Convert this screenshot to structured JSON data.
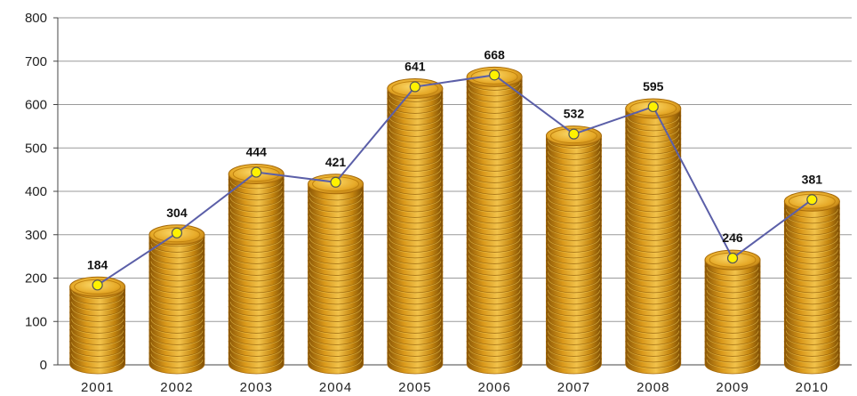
{
  "chart_data": {
    "type": "bar",
    "categories": [
      "2001",
      "2002",
      "2003",
      "2004",
      "2005",
      "2006",
      "2007",
      "2008",
      "2009",
      "2010"
    ],
    "values": [
      184,
      304,
      444,
      421,
      641,
      668,
      532,
      595,
      246,
      381
    ],
    "value_labels": [
      "184",
      "304",
      "444",
      "421",
      "641",
      "668",
      "532",
      "595",
      "246",
      "381"
    ],
    "overlay_line": {
      "values": [
        184,
        304,
        444,
        421,
        641,
        668,
        532,
        595,
        246,
        381
      ]
    },
    "ylim": [
      0,
      800
    ],
    "yticks": [
      "0",
      "100",
      "200",
      "300",
      "400",
      "500",
      "600",
      "700",
      "800"
    ],
    "grid": true,
    "legend": "none",
    "colors": {
      "coin_face": "#E0A21C",
      "coin_edge": "#A66A0A",
      "coin_highlight": "#F7CF55",
      "line": "#5B5FA8",
      "marker": "#FFF200",
      "grid": "#9A9A9A"
    },
    "bar_icon": "coin-stack-icon"
  }
}
